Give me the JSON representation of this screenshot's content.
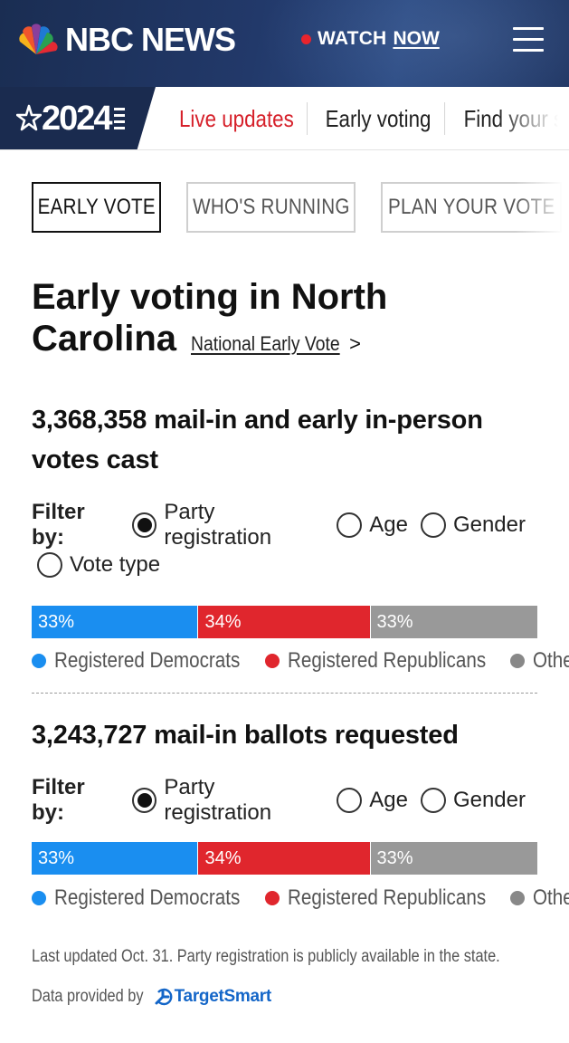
{
  "header": {
    "brand": "NBC NEWS",
    "watch_label": "WATCH",
    "watch_now": "NOW"
  },
  "subnav": {
    "badge_year": "2024",
    "links": [
      "Live updates",
      "Early voting",
      "Find your s"
    ]
  },
  "tabs": [
    "EARLY VOTE",
    "WHO'S RUNNING",
    "PLAN YOUR VOTE"
  ],
  "headline": {
    "line1": "Early voting in North",
    "line2": "Carolina",
    "national_link": "National Early Vote",
    "chevron": ">"
  },
  "section1": {
    "stat_number": "3,368,358",
    "stat_text": " mail-in and early in-person votes cast",
    "filter_label": "Filter by:",
    "filters": [
      {
        "label": "Party registration",
        "selected": true
      },
      {
        "label": "Age",
        "selected": false
      },
      {
        "label": "Gender",
        "selected": false
      },
      {
        "label": "Vote type",
        "selected": false
      }
    ],
    "bar": [
      {
        "label": "33%",
        "value": 33,
        "color": "#1a8ef0"
      },
      {
        "label": "34%",
        "value": 34,
        "color": "#e0262d"
      },
      {
        "label": "33%",
        "value": 33,
        "color": "#999999"
      }
    ],
    "legend": [
      {
        "label": "Registered Democrats",
        "color": "#1a8ef0"
      },
      {
        "label": "Registered Republicans",
        "color": "#e0262d"
      },
      {
        "label": "Other",
        "color": "#888888"
      }
    ]
  },
  "section2": {
    "stat_number": "3,243,727",
    "stat_text": " mail-in ballots requested",
    "filter_label": "Filter by:",
    "filters": [
      {
        "label": "Party registration",
        "selected": true
      },
      {
        "label": "Age",
        "selected": false
      },
      {
        "label": "Gender",
        "selected": false
      }
    ],
    "bar": [
      {
        "label": "33%",
        "value": 33,
        "color": "#1a8ef0"
      },
      {
        "label": "34%",
        "value": 34,
        "color": "#e0262d"
      },
      {
        "label": "33%",
        "value": 33,
        "color": "#999999"
      }
    ],
    "legend": [
      {
        "label": "Registered Democrats",
        "color": "#1a8ef0"
      },
      {
        "label": "Registered Republicans",
        "color": "#e0262d"
      },
      {
        "label": "Other",
        "color": "#888888"
      }
    ]
  },
  "footer": {
    "last_updated": "Last updated Oct. 31. Party registration is publicly available in the state.",
    "provided_by": "Data provided by",
    "provider": "TargetSmart"
  },
  "colors": {
    "header_bg": "#1a2d52",
    "accent_red": "#d6202a",
    "dem_blue": "#1a8ef0",
    "rep_red": "#e0262d",
    "other_gray": "#999999"
  }
}
